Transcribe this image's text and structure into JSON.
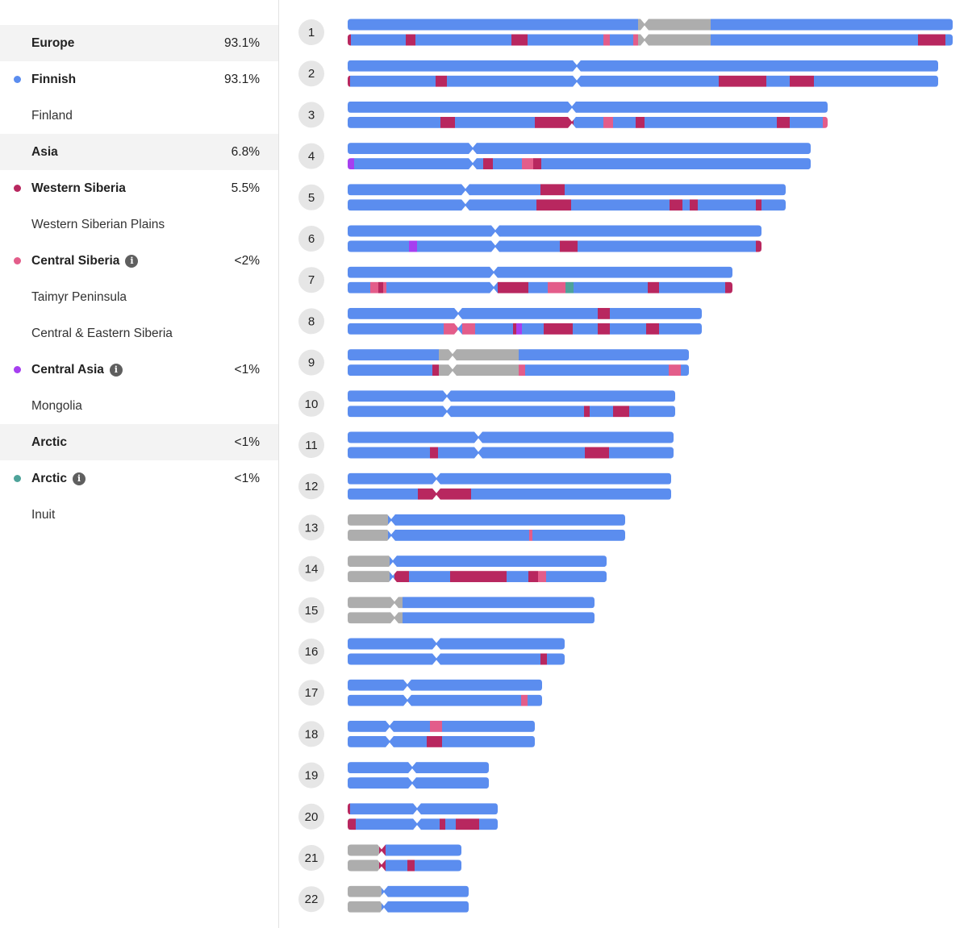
{
  "legend": [
    {
      "kind": "region",
      "label": "Europe",
      "pct": "93.1%"
    },
    {
      "kind": "pop",
      "label": "Finnish",
      "pct": "93.1%",
      "color": "#5b8def"
    },
    {
      "kind": "sub",
      "label": "Finland"
    },
    {
      "kind": "region",
      "label": "Asia",
      "pct": "6.8%"
    },
    {
      "kind": "pop",
      "label": "Western Siberia",
      "pct": "5.5%",
      "color": "#b8275f"
    },
    {
      "kind": "sub",
      "label": "Western Siberian Plains"
    },
    {
      "kind": "pop",
      "label": "Central Siberia",
      "pct": "<2%",
      "color": "#e35d8a",
      "info": true
    },
    {
      "kind": "sub",
      "label": "Taimyr Peninsula"
    },
    {
      "kind": "sub",
      "label": "Central & Eastern Siberia"
    },
    {
      "kind": "pop",
      "label": "Central Asia",
      "pct": "<1%",
      "color": "#a63ff0",
      "info": true
    },
    {
      "kind": "sub",
      "label": "Mongolia"
    },
    {
      "kind": "region",
      "label": "Arctic",
      "pct": "<1%"
    },
    {
      "kind": "pop",
      "label": "Arctic",
      "pct": "<1%",
      "color": "#4ea39a",
      "info": true
    },
    {
      "kind": "sub",
      "label": "Inuit"
    }
  ],
  "colors": {
    "F": "#5b8def",
    "W": "#b8275f",
    "C": "#e35d8a",
    "A": "#a63ff0",
    "R": "#4ea39a",
    "U": "#adadad"
  },
  "chart_data": {
    "type": "chromosome_painting",
    "chromosomes": [
      {
        "label": "1",
        "len": 750,
        "cent": 368,
        "top": [
          [
            0,
            360,
            "F"
          ],
          [
            360,
            450,
            "U"
          ],
          [
            450,
            750,
            "F"
          ]
        ],
        "bottom": [
          [
            0,
            4,
            "W"
          ],
          [
            4,
            72,
            "F"
          ],
          [
            72,
            84,
            "W"
          ],
          [
            84,
            203,
            "F"
          ],
          [
            203,
            223,
            "W"
          ],
          [
            223,
            317,
            "F"
          ],
          [
            317,
            325,
            "C"
          ],
          [
            325,
            354,
            "F"
          ],
          [
            354,
            360,
            "C"
          ],
          [
            360,
            450,
            "U"
          ],
          [
            450,
            707,
            "F"
          ],
          [
            707,
            741,
            "W"
          ],
          [
            741,
            750,
            "F"
          ]
        ]
      },
      {
        "label": "2",
        "len": 732,
        "cent": 284,
        "top": [
          [
            0,
            732,
            "F"
          ]
        ],
        "bottom": [
          [
            0,
            3,
            "W"
          ],
          [
            3,
            109,
            "F"
          ],
          [
            109,
            123,
            "W"
          ],
          [
            123,
            460,
            "F"
          ],
          [
            460,
            519,
            "W"
          ],
          [
            519,
            548,
            "F"
          ],
          [
            548,
            578,
            "W"
          ],
          [
            578,
            732,
            "F"
          ]
        ]
      },
      {
        "label": "3",
        "len": 595,
        "cent": 278,
        "top": [
          [
            0,
            595,
            "F"
          ]
        ],
        "bottom": [
          [
            0,
            115,
            "F"
          ],
          [
            115,
            133,
            "W"
          ],
          [
            133,
            232,
            "F"
          ],
          [
            232,
            280,
            "W"
          ],
          [
            280,
            317,
            "F"
          ],
          [
            317,
            329,
            "C"
          ],
          [
            329,
            357,
            "F"
          ],
          [
            357,
            368,
            "W"
          ],
          [
            368,
            532,
            "F"
          ],
          [
            532,
            548,
            "W"
          ],
          [
            548,
            589,
            "F"
          ],
          [
            589,
            595,
            "C"
          ]
        ]
      },
      {
        "label": "4",
        "len": 574,
        "cent": 155,
        "top": [
          [
            0,
            574,
            "F"
          ]
        ],
        "bottom": [
          [
            0,
            8,
            "A"
          ],
          [
            8,
            168,
            "F"
          ],
          [
            168,
            180,
            "W"
          ],
          [
            180,
            216,
            "F"
          ],
          [
            216,
            230,
            "C"
          ],
          [
            230,
            240,
            "W"
          ],
          [
            240,
            574,
            "F"
          ]
        ]
      },
      {
        "label": "5",
        "len": 543,
        "cent": 146,
        "top": [
          [
            0,
            239,
            "F"
          ],
          [
            239,
            269,
            "W"
          ],
          [
            269,
            543,
            "F"
          ]
        ],
        "bottom": [
          [
            0,
            234,
            "F"
          ],
          [
            234,
            277,
            "W"
          ],
          [
            277,
            399,
            "F"
          ],
          [
            399,
            415,
            "W"
          ],
          [
            415,
            424,
            "F"
          ],
          [
            424,
            434,
            "W"
          ],
          [
            434,
            506,
            "F"
          ],
          [
            506,
            513,
            "W"
          ],
          [
            513,
            543,
            "F"
          ]
        ]
      },
      {
        "label": "6",
        "len": 513,
        "cent": 183,
        "top": [
          [
            0,
            513,
            "F"
          ]
        ],
        "bottom": [
          [
            0,
            76,
            "F"
          ],
          [
            76,
            86,
            "A"
          ],
          [
            86,
            263,
            "F"
          ],
          [
            263,
            285,
            "W"
          ],
          [
            285,
            506,
            "F"
          ],
          [
            506,
            513,
            "W"
          ]
        ]
      },
      {
        "label": "7",
        "len": 477,
        "cent": 181,
        "top": [
          [
            0,
            477,
            "F"
          ]
        ],
        "bottom": [
          [
            0,
            28,
            "F"
          ],
          [
            28,
            38,
            "C"
          ],
          [
            38,
            44,
            "W"
          ],
          [
            44,
            48,
            "C"
          ],
          [
            48,
            186,
            "F"
          ],
          [
            186,
            224,
            "W"
          ],
          [
            224,
            248,
            "F"
          ],
          [
            248,
            270,
            "C"
          ],
          [
            270,
            280,
            "R"
          ],
          [
            280,
            372,
            "F"
          ],
          [
            372,
            386,
            "W"
          ],
          [
            386,
            468,
            "F"
          ],
          [
            468,
            477,
            "W"
          ]
        ]
      },
      {
        "label": "8",
        "len": 439,
        "cent": 137,
        "top": [
          [
            0,
            310,
            "F"
          ],
          [
            310,
            325,
            "W"
          ],
          [
            325,
            439,
            "F"
          ]
        ],
        "bottom": [
          [
            0,
            119,
            "F"
          ],
          [
            119,
            136,
            "C"
          ],
          [
            136,
            142,
            "F"
          ],
          [
            142,
            158,
            "C"
          ],
          [
            158,
            205,
            "F"
          ],
          [
            205,
            209,
            "W"
          ],
          [
            209,
            216,
            "A"
          ],
          [
            216,
            243,
            "F"
          ],
          [
            243,
            279,
            "W"
          ],
          [
            279,
            310,
            "F"
          ],
          [
            310,
            325,
            "W"
          ],
          [
            325,
            370,
            "F"
          ],
          [
            370,
            386,
            "W"
          ],
          [
            386,
            439,
            "F"
          ]
        ]
      },
      {
        "label": "9",
        "len": 423,
        "cent": 130,
        "top": [
          [
            0,
            113,
            "F"
          ],
          [
            113,
            212,
            "U"
          ],
          [
            212,
            423,
            "F"
          ]
        ],
        "bottom": [
          [
            0,
            105,
            "F"
          ],
          [
            105,
            113,
            "W"
          ],
          [
            113,
            212,
            "U"
          ],
          [
            212,
            220,
            "C"
          ],
          [
            220,
            398,
            "F"
          ],
          [
            398,
            413,
            "C"
          ],
          [
            413,
            423,
            "F"
          ]
        ]
      },
      {
        "label": "10",
        "len": 406,
        "cent": 123,
        "top": [
          [
            0,
            406,
            "F"
          ]
        ],
        "bottom": [
          [
            0,
            293,
            "F"
          ],
          [
            293,
            300,
            "W"
          ],
          [
            300,
            329,
            "F"
          ],
          [
            329,
            349,
            "W"
          ],
          [
            349,
            406,
            "F"
          ]
        ]
      },
      {
        "label": "11",
        "len": 404,
        "cent": 162,
        "top": [
          [
            0,
            404,
            "F"
          ]
        ],
        "bottom": [
          [
            0,
            102,
            "F"
          ],
          [
            102,
            112,
            "W"
          ],
          [
            112,
            294,
            "F"
          ],
          [
            294,
            324,
            "W"
          ],
          [
            324,
            404,
            "F"
          ]
        ]
      },
      {
        "label": "12",
        "len": 401,
        "cent": 110,
        "top": [
          [
            0,
            401,
            "F"
          ]
        ],
        "bottom": [
          [
            0,
            87,
            "F"
          ],
          [
            87,
            110,
            "W"
          ],
          [
            110,
            153,
            "W"
          ],
          [
            153,
            401,
            "F"
          ]
        ]
      },
      {
        "label": "13",
        "len": 344,
        "cent": 54,
        "top": [
          [
            0,
            50,
            "U"
          ],
          [
            50,
            344,
            "F"
          ]
        ],
        "bottom": [
          [
            0,
            50,
            "U"
          ],
          [
            50,
            225,
            "F"
          ],
          [
            225,
            229,
            "C"
          ],
          [
            229,
            344,
            "F"
          ]
        ]
      },
      {
        "label": "14",
        "len": 321,
        "cent": 56,
        "top": [
          [
            0,
            52,
            "U"
          ],
          [
            52,
            321,
            "F"
          ]
        ],
        "bottom": [
          [
            0,
            52,
            "U"
          ],
          [
            52,
            58,
            "F"
          ],
          [
            58,
            76,
            "W"
          ],
          [
            76,
            127,
            "F"
          ],
          [
            127,
            197,
            "W"
          ],
          [
            197,
            224,
            "F"
          ],
          [
            224,
            236,
            "W"
          ],
          [
            236,
            246,
            "C"
          ],
          [
            246,
            321,
            "F"
          ]
        ]
      },
      {
        "label": "15",
        "len": 306,
        "cent": 58,
        "top": [
          [
            0,
            54,
            "U"
          ],
          [
            54,
            68,
            "U"
          ],
          [
            68,
            306,
            "F"
          ]
        ],
        "bottom": [
          [
            0,
            54,
            "U"
          ],
          [
            54,
            68,
            "U"
          ],
          [
            68,
            306,
            "F"
          ]
        ]
      },
      {
        "label": "16",
        "len": 269,
        "cent": 110,
        "top": [
          [
            0,
            269,
            "F"
          ]
        ],
        "bottom": [
          [
            0,
            239,
            "F"
          ],
          [
            239,
            247,
            "W"
          ],
          [
            247,
            269,
            "F"
          ]
        ]
      },
      {
        "label": "17",
        "len": 241,
        "cent": 74,
        "top": [
          [
            0,
            241,
            "F"
          ]
        ],
        "bottom": [
          [
            0,
            215,
            "F"
          ],
          [
            215,
            223,
            "C"
          ],
          [
            223,
            241,
            "F"
          ]
        ]
      },
      {
        "label": "18",
        "len": 232,
        "cent": 52,
        "top": [
          [
            0,
            102,
            "F"
          ],
          [
            102,
            117,
            "C"
          ],
          [
            117,
            232,
            "F"
          ]
        ],
        "bottom": [
          [
            0,
            98,
            "F"
          ],
          [
            98,
            117,
            "W"
          ],
          [
            117,
            232,
            "F"
          ]
        ]
      },
      {
        "label": "19",
        "len": 175,
        "cent": 80,
        "top": [
          [
            0,
            175,
            "F"
          ]
        ],
        "bottom": [
          [
            0,
            175,
            "F"
          ]
        ]
      },
      {
        "label": "20",
        "len": 186,
        "cent": 86,
        "top": [
          [
            0,
            3,
            "W"
          ],
          [
            3,
            186,
            "F"
          ]
        ],
        "bottom": [
          [
            0,
            10,
            "W"
          ],
          [
            10,
            114,
            "F"
          ],
          [
            114,
            121,
            "W"
          ],
          [
            121,
            134,
            "F"
          ],
          [
            134,
            163,
            "W"
          ],
          [
            163,
            186,
            "F"
          ]
        ]
      },
      {
        "label": "21",
        "len": 141,
        "cent": 42,
        "top": [
          [
            0,
            39,
            "U"
          ],
          [
            39,
            47,
            "W"
          ],
          [
            47,
            141,
            "F"
          ]
        ],
        "bottom": [
          [
            0,
            39,
            "U"
          ],
          [
            39,
            47,
            "W"
          ],
          [
            47,
            74,
            "F"
          ],
          [
            74,
            83,
            "W"
          ],
          [
            83,
            141,
            "F"
          ]
        ]
      },
      {
        "label": "22",
        "len": 150,
        "cent": 45,
        "top": [
          [
            0,
            42,
            "U"
          ],
          [
            42,
            150,
            "F"
          ]
        ],
        "bottom": [
          [
            0,
            42,
            "U"
          ],
          [
            42,
            150,
            "F"
          ]
        ]
      }
    ]
  }
}
